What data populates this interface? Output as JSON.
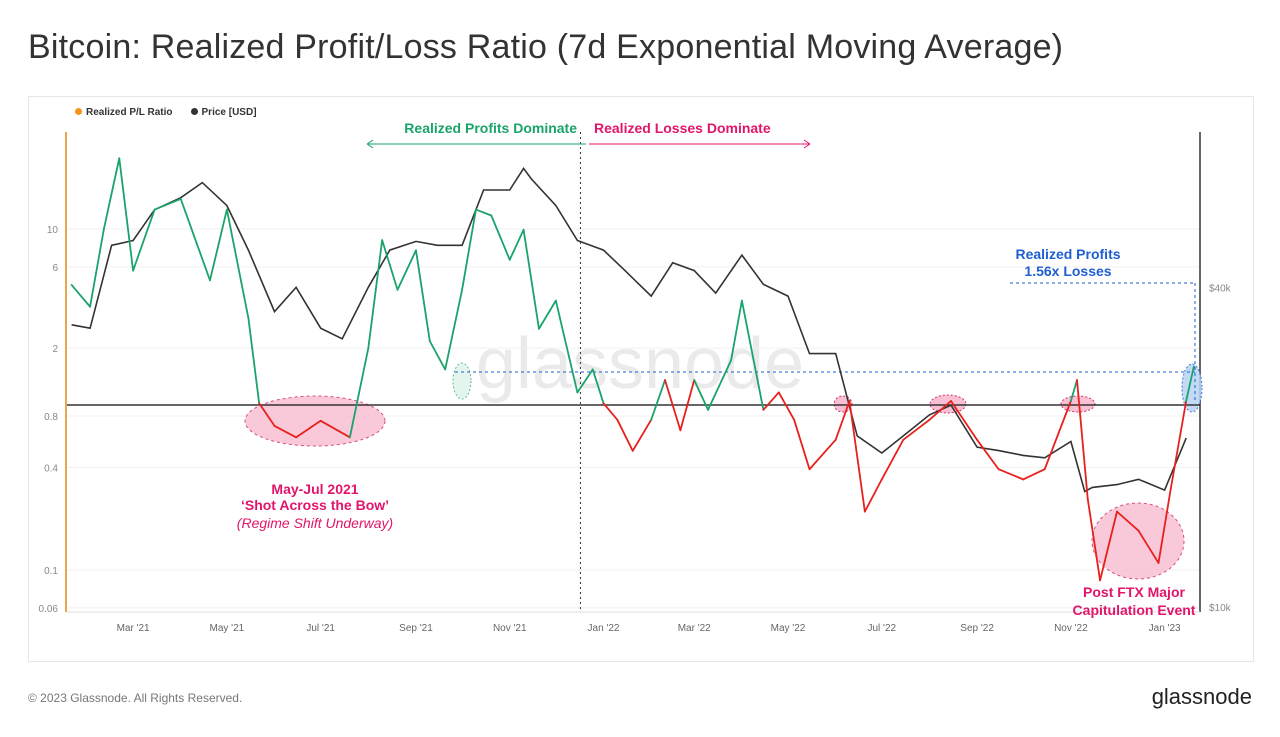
{
  "title": "Bitcoin: Realized Profit/Loss Ratio (7d Exponential Moving Average)",
  "footer": "© 2023 Glassnode. All Rights Reserved.",
  "logo": "glassnode",
  "watermark": "glassnode",
  "chart_data": {
    "type": "line",
    "legend": [
      {
        "name": "Realized P/L Ratio",
        "color": "#f7931a"
      },
      {
        "name": "Price [USD]",
        "color": "#333333"
      }
    ],
    "legend_position": "top-left",
    "y_left": {
      "scale": "log",
      "range": [
        0.06,
        40
      ],
      "ticks": [
        "10",
        "6",
        "2",
        "0.8",
        "0.4",
        "0.1",
        "0.06"
      ]
    },
    "y_right": {
      "scale": "log",
      "range": [
        10000,
        60000
      ],
      "ticks": [
        "$40k",
        "$10k"
      ]
    },
    "x_ticks": [
      [
        "2021-03-01",
        "Mar '21"
      ],
      [
        "2021-05-01",
        "May '21"
      ],
      [
        "2021-07-01",
        "Jul '21"
      ],
      [
        "2021-09-01",
        "Sep '21"
      ],
      [
        "2021-11-01",
        "Nov '21"
      ],
      [
        "2022-01-01",
        "Jan '22"
      ],
      [
        "2022-03-01",
        "Mar '22"
      ],
      [
        "2022-05-01",
        "May '22"
      ],
      [
        "2022-07-01",
        "Jul '22"
      ],
      [
        "2022-09-01",
        "Sep '22"
      ],
      [
        "2022-11-01",
        "Nov '22"
      ],
      [
        "2023-01-01",
        "Jan '23"
      ]
    ],
    "x_range": [
      "2021-01-17",
      "2023-01-24"
    ],
    "colors": {
      "profit": "#1aa36b",
      "loss": "#e8201c",
      "price": "#333333",
      "neutral_line": "#333333",
      "annotation_pink": "#e0156b",
      "annotation_blue": "#1f5fd1"
    },
    "series": [
      {
        "name": "Realized P/L Ratio",
        "points": [
          [
            "2021-01-20",
            4.7
          ],
          [
            "2021-02-01",
            3.5
          ],
          [
            "2021-02-10",
            10
          ],
          [
            "2021-02-20",
            26
          ],
          [
            "2021-03-01",
            5.7
          ],
          [
            "2021-03-15",
            13
          ],
          [
            "2021-04-01",
            15
          ],
          [
            "2021-04-20",
            5
          ],
          [
            "2021-05-01",
            13
          ],
          [
            "2021-05-15",
            3
          ],
          [
            "2021-05-22",
            0.95
          ],
          [
            "2021-06-01",
            0.7
          ],
          [
            "2021-06-15",
            0.6
          ],
          [
            "2021-07-01",
            0.75
          ],
          [
            "2021-07-20",
            0.6
          ],
          [
            "2021-08-01",
            2
          ],
          [
            "2021-08-10",
            8.6
          ],
          [
            "2021-08-20",
            4.4
          ],
          [
            "2021-09-01",
            7.5
          ],
          [
            "2021-09-10",
            2.2
          ],
          [
            "2021-09-20",
            1.5
          ],
          [
            "2021-10-01",
            4.4
          ],
          [
            "2021-10-10",
            13
          ],
          [
            "2021-10-20",
            12
          ],
          [
            "2021-11-01",
            6.6
          ],
          [
            "2021-11-10",
            9.9
          ],
          [
            "2021-11-20",
            2.6
          ],
          [
            "2021-12-01",
            3.8
          ],
          [
            "2021-12-15",
            1.1
          ],
          [
            "2021-12-25",
            1.5
          ],
          [
            "2022-01-01",
            0.95
          ],
          [
            "2022-01-10",
            0.76
          ],
          [
            "2022-01-20",
            0.5
          ],
          [
            "2022-02-01",
            0.76
          ],
          [
            "2022-02-10",
            1.3
          ],
          [
            "2022-02-20",
            0.66
          ],
          [
            "2022-03-01",
            1.3
          ],
          [
            "2022-03-10",
            0.87
          ],
          [
            "2022-03-25",
            1.7
          ],
          [
            "2022-04-01",
            3.8
          ],
          [
            "2022-04-15",
            0.87
          ],
          [
            "2022-04-25",
            1.1
          ],
          [
            "2022-05-05",
            0.76
          ],
          [
            "2022-05-15",
            0.39
          ],
          [
            "2022-06-01",
            0.58
          ],
          [
            "2022-06-10",
            0.98
          ],
          [
            "2022-06-20",
            0.22
          ],
          [
            "2022-07-01",
            0.34
          ],
          [
            "2022-07-15",
            0.58
          ],
          [
            "2022-08-01",
            0.76
          ],
          [
            "2022-08-15",
            0.98
          ],
          [
            "2022-09-01",
            0.58
          ],
          [
            "2022-09-15",
            0.39
          ],
          [
            "2022-10-01",
            0.34
          ],
          [
            "2022-10-15",
            0.39
          ],
          [
            "2022-11-01",
            0.98
          ],
          [
            "2022-11-05",
            1.3
          ],
          [
            "2022-11-12",
            0.26
          ],
          [
            "2022-11-20",
            0.087
          ],
          [
            "2022-12-01",
            0.22
          ],
          [
            "2022-12-15",
            0.17
          ],
          [
            "2022-12-28",
            0.11
          ],
          [
            "2023-01-05",
            0.3
          ],
          [
            "2023-01-15",
            0.98
          ],
          [
            "2023-01-20",
            1.56
          ]
        ]
      },
      {
        "name": "Price [USD]",
        "points": [
          [
            "2021-01-20",
            34000
          ],
          [
            "2021-02-01",
            33500
          ],
          [
            "2021-02-15",
            48000
          ],
          [
            "2021-03-01",
            49000
          ],
          [
            "2021-03-15",
            56000
          ],
          [
            "2021-04-01",
            59000
          ],
          [
            "2021-04-15",
            63000
          ],
          [
            "2021-05-01",
            57000
          ],
          [
            "2021-05-15",
            47000
          ],
          [
            "2021-06-01",
            36000
          ],
          [
            "2021-06-15",
            40000
          ],
          [
            "2021-07-01",
            33500
          ],
          [
            "2021-07-15",
            32000
          ],
          [
            "2021-08-01",
            40000
          ],
          [
            "2021-08-15",
            47000
          ],
          [
            "2021-09-01",
            48800
          ],
          [
            "2021-09-15",
            48000
          ],
          [
            "2021-10-01",
            48000
          ],
          [
            "2021-10-15",
            61000
          ],
          [
            "2021-11-01",
            61000
          ],
          [
            "2021-11-10",
            67000
          ],
          [
            "2021-11-15",
            64000
          ],
          [
            "2021-12-01",
            57000
          ],
          [
            "2021-12-15",
            49000
          ],
          [
            "2022-01-01",
            47000
          ],
          [
            "2022-01-15",
            43000
          ],
          [
            "2022-02-01",
            38500
          ],
          [
            "2022-02-15",
            44500
          ],
          [
            "2022-03-01",
            43000
          ],
          [
            "2022-03-15",
            39000
          ],
          [
            "2022-04-01",
            46000
          ],
          [
            "2022-04-15",
            40500
          ],
          [
            "2022-05-01",
            38500
          ],
          [
            "2022-05-15",
            30000
          ],
          [
            "2022-06-01",
            30000
          ],
          [
            "2022-06-15",
            21000
          ],
          [
            "2022-07-01",
            19500
          ],
          [
            "2022-07-15",
            21000
          ],
          [
            "2022-08-01",
            23000
          ],
          [
            "2022-08-15",
            24000
          ],
          [
            "2022-09-01",
            20000
          ],
          [
            "2022-09-15",
            19700
          ],
          [
            "2022-10-01",
            19300
          ],
          [
            "2022-10-15",
            19100
          ],
          [
            "2022-11-01",
            20500
          ],
          [
            "2022-11-10",
            16500
          ],
          [
            "2022-11-15",
            16800
          ],
          [
            "2022-12-01",
            17000
          ],
          [
            "2022-12-15",
            17400
          ],
          [
            "2023-01-01",
            16600
          ],
          [
            "2023-01-15",
            20800
          ]
        ]
      }
    ],
    "reference_line": 1,
    "divider_date": "2021-12-17",
    "annotations": {
      "profits_dominate": "Realized Profits Dominate",
      "losses_dominate": "Realized Losses Dominate",
      "may_jul_line1": "May-Jul 2021",
      "may_jul_line2": "‘Shot Across the Bow’",
      "may_jul_line3": "(Regime Shift Underway)",
      "ratio_line1": "Realized Profits",
      "ratio_line2": "1.56x Losses",
      "ftx_line1": "Post FTX Major",
      "ftx_line2": "Capitulation Event"
    }
  }
}
